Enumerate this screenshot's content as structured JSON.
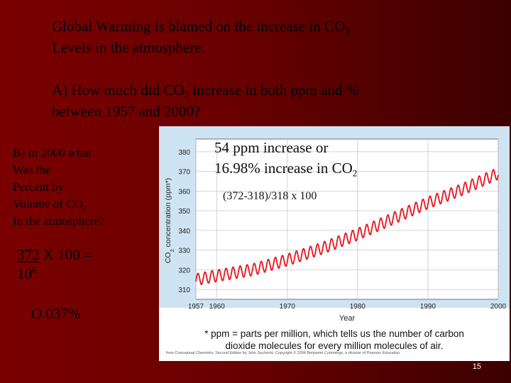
{
  "slide": {
    "title_line1_pre": "Global Warming is blamed on the increase in CO",
    "title_line1_sub": "2",
    "title_line2": "Levels in the atmosphere.",
    "question_a_pre": "A) How much did CO",
    "question_a_sub": "2",
    "question_a_mid": " increase in both ppm and %",
    "question_a_line2": "between 1957 and 2000?",
    "question_b_line1": "B) In 2000 what",
    "question_b_line2": "Was the",
    "question_b_line3": "Percent by",
    "question_b_line4_pre": "Volume of CO",
    "question_b_line4_sub": "2",
    "question_b_line5": "In the atmosphere?",
    "calc_number": "372",
    "calc_rest": " X 100 =",
    "calc_base": "10",
    "calc_exp": "6",
    "result": "O.037%",
    "answer_line1": "54 ppm increase or",
    "answer_line2_pre": "16.98% increase in CO",
    "answer_line2_sub": "2",
    "work": "(372-318)/318  x 100",
    "page_number": "15"
  },
  "chart_data": {
    "type": "line",
    "ylabel_pre": "CO",
    "ylabel_sub": "2",
    "ylabel_post": " concentration (ppm*)",
    "xlabel": "Year",
    "xlim": [
      1957,
      2000
    ],
    "ylim": [
      305,
      385
    ],
    "x_ticks": [
      "1957",
      "1960",
      "1970",
      "1980",
      "1990",
      "2000"
    ],
    "x_tick_values": [
      1957,
      1960,
      1970,
      1980,
      1990,
      2000
    ],
    "y_ticks": [
      310,
      320,
      330,
      340,
      350,
      360,
      370,
      380
    ],
    "grid": true,
    "series": [
      {
        "color": "#e8141e",
        "x": [
          1957,
          1960,
          1965,
          1970,
          1975,
          1980,
          1985,
          1990,
          1995,
          2000
        ],
        "values": [
          315,
          317,
          320,
          325,
          331,
          338,
          346,
          354,
          361,
          369
        ],
        "seasonal_amplitude": 3
      }
    ],
    "footnote_line1": "* ppm = parts per million, which tells us the number of carbon",
    "footnote_line2": "dioxide molecules for every million molecules of air.",
    "credit": "from Conceptual Chemistry, Second Edition by John Suchocki. Copyright © 2004 Benjamin Cummings, a division of Pearson Education."
  }
}
